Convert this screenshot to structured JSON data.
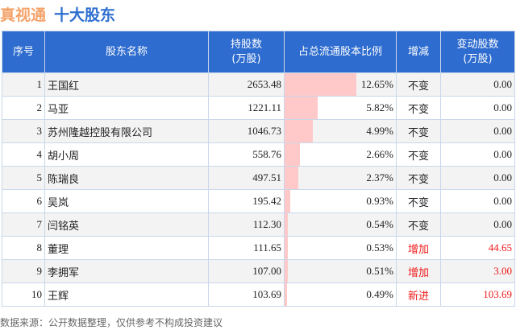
{
  "title": {
    "brand": "真视通",
    "subtitle": "十大股东"
  },
  "headers": [
    "序号",
    "股东名称",
    "持股数\n(万股)",
    "占总流通股本比例",
    "增减",
    "变动股数\n(万股)"
  ],
  "colors": {
    "header_bg": "#2e6ccf",
    "bar": "#ffc9c9",
    "increase": "#f01818",
    "brand": "#f4a36a"
  },
  "rows": [
    {
      "rank": "1",
      "name": "王国红",
      "shares": "2653.48",
      "ratio": "12.65%",
      "ratio_value": 12.65,
      "change": "不变",
      "change_shares": "0.00",
      "highlight": false
    },
    {
      "rank": "2",
      "name": "马亚",
      "shares": "1221.11",
      "ratio": "5.82%",
      "ratio_value": 5.82,
      "change": "不变",
      "change_shares": "0.00",
      "highlight": false
    },
    {
      "rank": "3",
      "name": "苏州隆越控股有限公司",
      "shares": "1046.73",
      "ratio": "4.99%",
      "ratio_value": 4.99,
      "change": "不变",
      "change_shares": "0.00",
      "highlight": false
    },
    {
      "rank": "4",
      "name": "胡小周",
      "shares": "558.76",
      "ratio": "2.66%",
      "ratio_value": 2.66,
      "change": "不变",
      "change_shares": "0.00",
      "highlight": false
    },
    {
      "rank": "5",
      "name": "陈瑞良",
      "shares": "497.51",
      "ratio": "2.37%",
      "ratio_value": 2.37,
      "change": "不变",
      "change_shares": "0.00",
      "highlight": false
    },
    {
      "rank": "6",
      "name": "吴岚",
      "shares": "195.42",
      "ratio": "0.93%",
      "ratio_value": 0.93,
      "change": "不变",
      "change_shares": "0.00",
      "highlight": false
    },
    {
      "rank": "7",
      "name": "闫铭英",
      "shares": "112.30",
      "ratio": "0.54%",
      "ratio_value": 0.54,
      "change": "不变",
      "change_shares": "0.00",
      "highlight": false
    },
    {
      "rank": "8",
      "name": "董理",
      "shares": "111.65",
      "ratio": "0.53%",
      "ratio_value": 0.53,
      "change": "增加",
      "change_shares": "44.65",
      "highlight": true
    },
    {
      "rank": "9",
      "name": "李拥军",
      "shares": "107.00",
      "ratio": "0.51%",
      "ratio_value": 0.51,
      "change": "增加",
      "change_shares": "3.00",
      "highlight": true
    },
    {
      "rank": "10",
      "name": "王辉",
      "shares": "103.69",
      "ratio": "0.49%",
      "ratio_value": 0.49,
      "change": "新进",
      "change_shares": "103.69",
      "highlight": true
    }
  ],
  "footer": "数据来源：公开数据整理，仅供参考不构成投资建议"
}
